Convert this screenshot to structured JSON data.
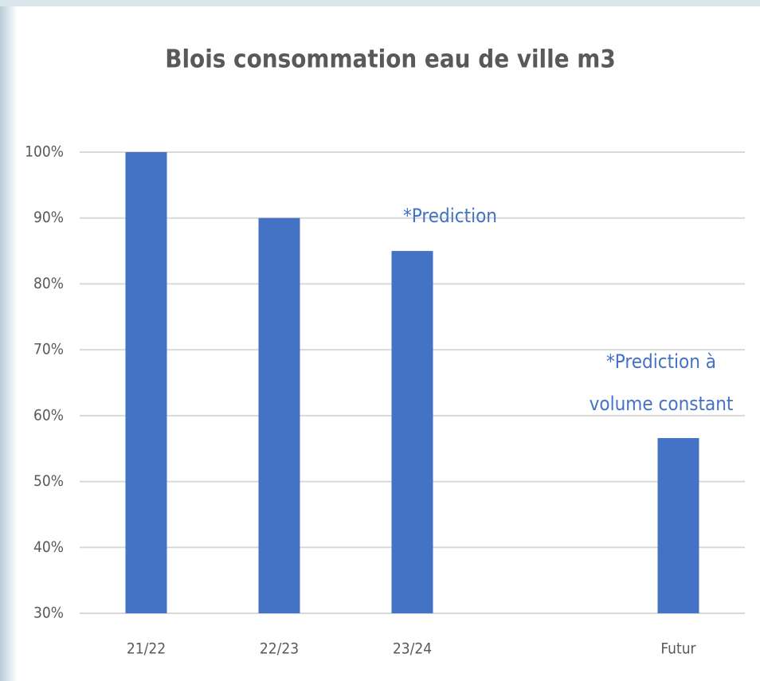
{
  "chart_data": {
    "type": "bar",
    "title": "Blois consommation eau de ville m3",
    "categories": [
      "21/22",
      "22/23",
      "23/24",
      null,
      "Futur"
    ],
    "values": [
      100,
      90,
      85,
      null,
      56.6
    ],
    "color": "#4472c4",
    "ylim": [
      30,
      100
    ],
    "yticks": [
      {
        "value": 30,
        "label": "30%"
      },
      {
        "value": 40,
        "label": "40%"
      },
      {
        "value": 50,
        "label": "50%"
      },
      {
        "value": 60,
        "label": "60%"
      },
      {
        "value": 70,
        "label": "70%"
      },
      {
        "value": 80,
        "label": "80%"
      },
      {
        "value": 90,
        "label": "90%"
      },
      {
        "value": 100,
        "label": "100%"
      }
    ],
    "grid": true,
    "annotations": [
      [
        "*Prediction"
      ],
      [
        "*Prediction à",
        "volume constant"
      ]
    ]
  }
}
